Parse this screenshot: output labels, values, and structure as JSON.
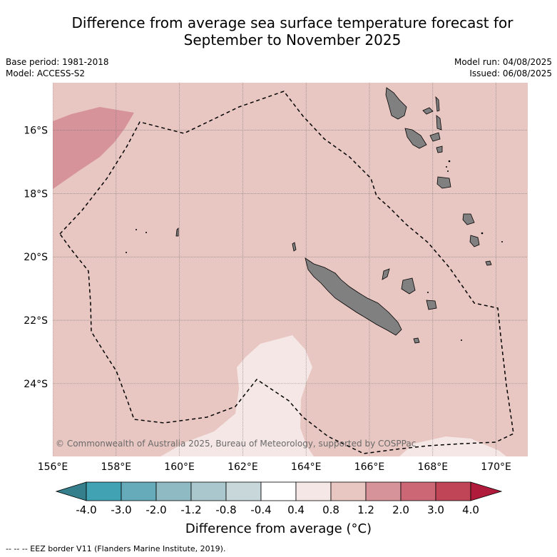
{
  "title": {
    "line1": "Difference from average sea surface temperature forecast for",
    "line2": "September to November 2025"
  },
  "meta": {
    "base_period": "Base period: 1981-2018",
    "model": "Model: ACCESS-S2",
    "model_run": "Model run: 04/08/2025",
    "issued": "Issued: 06/08/2025"
  },
  "map": {
    "lon_ticks": [
      "156°E",
      "158°E",
      "160°E",
      "162°E",
      "164°E",
      "166°E",
      "168°E",
      "170°E"
    ],
    "lat_ticks": [
      "16°S",
      "18°S",
      "20°S",
      "22°S",
      "24°S"
    ],
    "lon_range": [
      156,
      171
    ],
    "lat_range": [
      -26.3,
      -14.5
    ],
    "copyright": "© Commonwealth of Australia 2025, Bureau of Meteorology, supported by COSPPac",
    "background_color": "#e8c6c1",
    "warm_patch_color": "#d7939a",
    "cool_patch_color": "#f5e7e5",
    "land_color": "#808080"
  },
  "colorbar": {
    "ticks": [
      "-4.0",
      "-3.0",
      "-2.0",
      "-1.2",
      "-0.8",
      "-0.4",
      "0.4",
      "0.8",
      "1.2",
      "2.0",
      "3.0",
      "4.0"
    ],
    "colors": [
      "#40a2b2",
      "#66abba",
      "#8fbac4",
      "#a9c7cc",
      "#c8d8da",
      "#ffffff",
      "#f5e7e5",
      "#e8c6c1",
      "#d7939a",
      "#cc6875",
      "#c04657"
    ],
    "under_color": "#357f8c",
    "over_color": "#b01a3b",
    "label": "Difference from average (°C)"
  },
  "footnote": "--  --  -- EEZ border V11 (Flanders Marine Institute, 2019)."
}
